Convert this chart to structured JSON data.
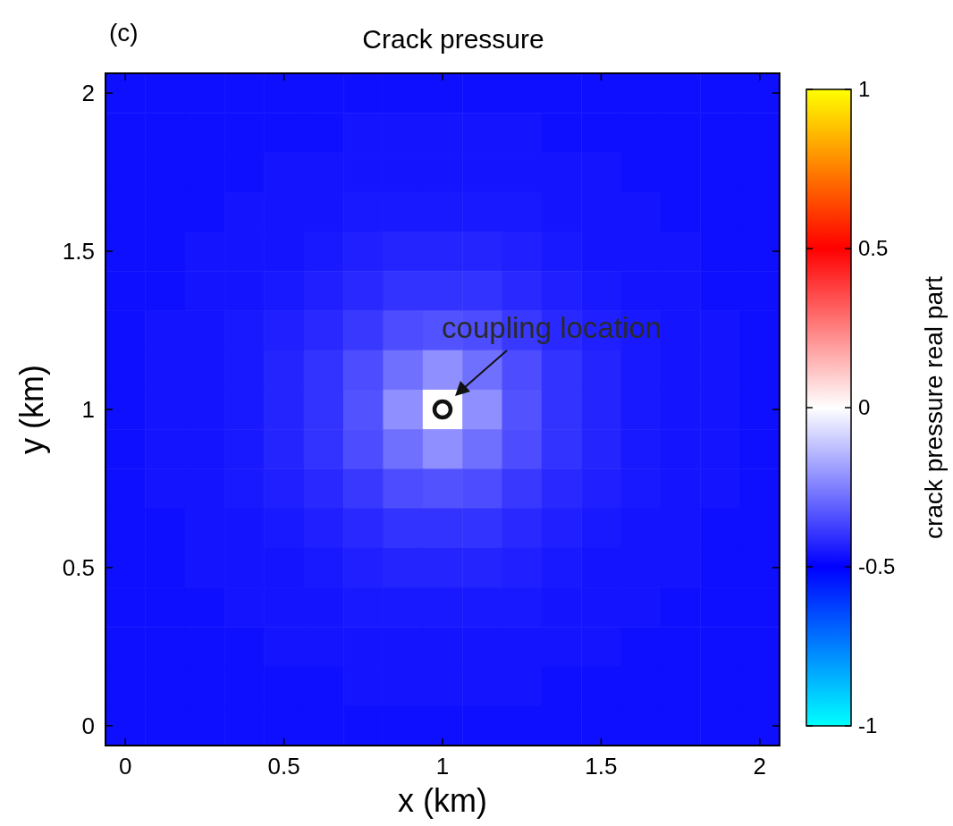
{
  "chart_data": {
    "type": "heatmap",
    "title": "Crack pressure",
    "xlabel": "x (km)",
    "ylabel": "y (km)",
    "clabel": "crack pressure real part",
    "categories": [
      "0",
      null,
      null,
      null,
      "0.5",
      null,
      null,
      null,
      "1",
      null,
      null,
      null,
      "1.5",
      null,
      null,
      null,
      "2"
    ],
    "y_categories": [
      "2",
      null,
      null,
      null,
      "1.5",
      null,
      null,
      null,
      "1",
      null,
      null,
      null,
      "0.5",
      null,
      null,
      null,
      "0"
    ],
    "clim": [
      -1,
      1
    ],
    "cticks": [
      -1,
      -0.5,
      0,
      0.5,
      1
    ],
    "annotations": [
      "(c)",
      {
        "text": "coupling location",
        "x": "1",
        "y": "1"
      }
    ],
    "cells": [
      [
        -0.47,
        -0.47,
        -0.47,
        -0.47,
        -0.47,
        -0.47,
        -0.47,
        -0.47,
        -0.47,
        -0.47,
        -0.47,
        -0.47,
        -0.47,
        -0.47,
        -0.47,
        -0.47,
        -0.47
      ],
      [
        -0.47,
        -0.47,
        -0.47,
        -0.47,
        -0.47,
        -0.47,
        -0.46,
        -0.46,
        -0.46,
        -0.46,
        -0.46,
        -0.47,
        -0.47,
        -0.47,
        -0.47,
        -0.47,
        -0.47
      ],
      [
        -0.47,
        -0.47,
        -0.47,
        -0.47,
        -0.46,
        -0.46,
        -0.46,
        -0.46,
        -0.46,
        -0.46,
        -0.46,
        -0.46,
        -0.46,
        -0.47,
        -0.47,
        -0.47,
        -0.47
      ],
      [
        -0.47,
        -0.47,
        -0.47,
        -0.46,
        -0.46,
        -0.46,
        -0.45,
        -0.45,
        -0.45,
        -0.45,
        -0.45,
        -0.46,
        -0.46,
        -0.46,
        -0.47,
        -0.47,
        -0.47
      ],
      [
        -0.47,
        -0.47,
        -0.46,
        -0.46,
        -0.46,
        -0.45,
        -0.44,
        -0.43,
        -0.43,
        -0.43,
        -0.44,
        -0.45,
        -0.46,
        -0.46,
        -0.46,
        -0.47,
        -0.47
      ],
      [
        -0.47,
        -0.47,
        -0.46,
        -0.46,
        -0.45,
        -0.44,
        -0.42,
        -0.4,
        -0.4,
        -0.4,
        -0.42,
        -0.44,
        -0.45,
        -0.46,
        -0.46,
        -0.47,
        -0.47
      ],
      [
        -0.47,
        -0.46,
        -0.46,
        -0.45,
        -0.44,
        -0.42,
        -0.39,
        -0.35,
        -0.34,
        -0.35,
        -0.39,
        -0.42,
        -0.44,
        -0.45,
        -0.46,
        -0.46,
        -0.47
      ],
      [
        -0.47,
        -0.46,
        -0.46,
        -0.45,
        -0.43,
        -0.4,
        -0.35,
        -0.28,
        -0.22,
        -0.28,
        -0.35,
        -0.4,
        -0.43,
        -0.45,
        -0.46,
        -0.46,
        -0.47
      ],
      [
        -0.47,
        -0.46,
        -0.46,
        -0.45,
        -0.43,
        -0.4,
        -0.34,
        -0.22,
        0,
        -0.22,
        -0.34,
        -0.4,
        -0.43,
        -0.45,
        -0.46,
        -0.46,
        -0.47
      ],
      [
        -0.47,
        -0.46,
        -0.46,
        -0.45,
        -0.43,
        -0.4,
        -0.35,
        -0.28,
        -0.22,
        -0.28,
        -0.35,
        -0.4,
        -0.43,
        -0.45,
        -0.46,
        -0.46,
        -0.47
      ],
      [
        -0.47,
        -0.46,
        -0.46,
        -0.45,
        -0.44,
        -0.42,
        -0.39,
        -0.35,
        -0.34,
        -0.35,
        -0.39,
        -0.42,
        -0.44,
        -0.45,
        -0.46,
        -0.46,
        -0.47
      ],
      [
        -0.47,
        -0.47,
        -0.46,
        -0.46,
        -0.45,
        -0.44,
        -0.42,
        -0.4,
        -0.4,
        -0.4,
        -0.42,
        -0.44,
        -0.45,
        -0.46,
        -0.46,
        -0.47,
        -0.47
      ],
      [
        -0.47,
        -0.47,
        -0.46,
        -0.46,
        -0.46,
        -0.45,
        -0.44,
        -0.43,
        -0.43,
        -0.43,
        -0.44,
        -0.45,
        -0.46,
        -0.46,
        -0.46,
        -0.47,
        -0.47
      ],
      [
        -0.47,
        -0.47,
        -0.47,
        -0.46,
        -0.46,
        -0.46,
        -0.45,
        -0.45,
        -0.45,
        -0.45,
        -0.45,
        -0.46,
        -0.46,
        -0.46,
        -0.47,
        -0.47,
        -0.47
      ],
      [
        -0.47,
        -0.47,
        -0.47,
        -0.47,
        -0.46,
        -0.46,
        -0.46,
        -0.46,
        -0.46,
        -0.46,
        -0.46,
        -0.46,
        -0.46,
        -0.47,
        -0.47,
        -0.47,
        -0.47
      ],
      [
        -0.47,
        -0.47,
        -0.47,
        -0.47,
        -0.47,
        -0.47,
        -0.46,
        -0.46,
        -0.46,
        -0.46,
        -0.46,
        -0.47,
        -0.47,
        -0.47,
        -0.47,
        -0.47,
        -0.47
      ],
      [
        -0.47,
        -0.47,
        -0.47,
        -0.47,
        -0.47,
        -0.47,
        -0.47,
        -0.47,
        -0.47,
        -0.47,
        -0.47,
        -0.47,
        -0.47,
        -0.47,
        -0.47,
        -0.47,
        -0.47
      ]
    ]
  }
}
